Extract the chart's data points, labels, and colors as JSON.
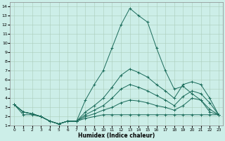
{
  "xlabel": "Humidex (Indice chaleur)",
  "xlim": [
    -0.5,
    23.5
  ],
  "ylim": [
    1,
    14.5
  ],
  "yticks": [
    1,
    2,
    3,
    4,
    5,
    6,
    7,
    8,
    9,
    10,
    11,
    12,
    13,
    14
  ],
  "xticks": [
    0,
    1,
    2,
    3,
    4,
    5,
    6,
    7,
    8,
    9,
    10,
    11,
    12,
    13,
    14,
    15,
    16,
    17,
    18,
    19,
    20,
    21,
    22,
    23
  ],
  "bg_color": "#cceee8",
  "grid_color": "#aaccbb",
  "line_color": "#1a6b5a",
  "lines": [
    [
      3.3,
      2.2,
      2.2,
      2.0,
      1.5,
      1.2,
      1.5,
      1.5,
      3.8,
      5.5,
      7.0,
      9.5,
      12.0,
      13.8,
      13.0,
      12.3,
      9.5,
      7.0,
      5.0,
      5.3,
      4.5,
      3.8,
      2.5,
      2.2
    ],
    [
      3.3,
      2.5,
      2.3,
      2.0,
      1.5,
      1.2,
      1.5,
      1.5,
      2.5,
      3.2,
      4.0,
      5.2,
      6.5,
      7.2,
      6.8,
      6.3,
      5.5,
      4.8,
      4.0,
      5.5,
      5.8,
      5.5,
      4.0,
      2.2
    ],
    [
      3.3,
      2.5,
      2.3,
      2.0,
      1.5,
      1.2,
      1.5,
      1.5,
      2.2,
      2.7,
      3.2,
      4.0,
      5.0,
      5.5,
      5.2,
      4.8,
      4.3,
      3.8,
      3.2,
      4.2,
      4.8,
      4.5,
      3.5,
      2.2
    ],
    [
      3.3,
      2.5,
      2.3,
      2.0,
      1.5,
      1.2,
      1.5,
      1.5,
      2.0,
      2.3,
      2.7,
      3.0,
      3.5,
      3.8,
      3.7,
      3.5,
      3.2,
      3.0,
      2.7,
      3.2,
      4.0,
      3.8,
      2.8,
      2.2
    ],
    [
      3.3,
      2.5,
      2.3,
      2.0,
      1.5,
      1.2,
      1.5,
      1.5,
      1.8,
      2.0,
      2.2,
      2.2,
      2.2,
      2.2,
      2.2,
      2.2,
      2.2,
      2.2,
      2.2,
      2.2,
      2.2,
      2.2,
      2.2,
      2.2
    ]
  ]
}
